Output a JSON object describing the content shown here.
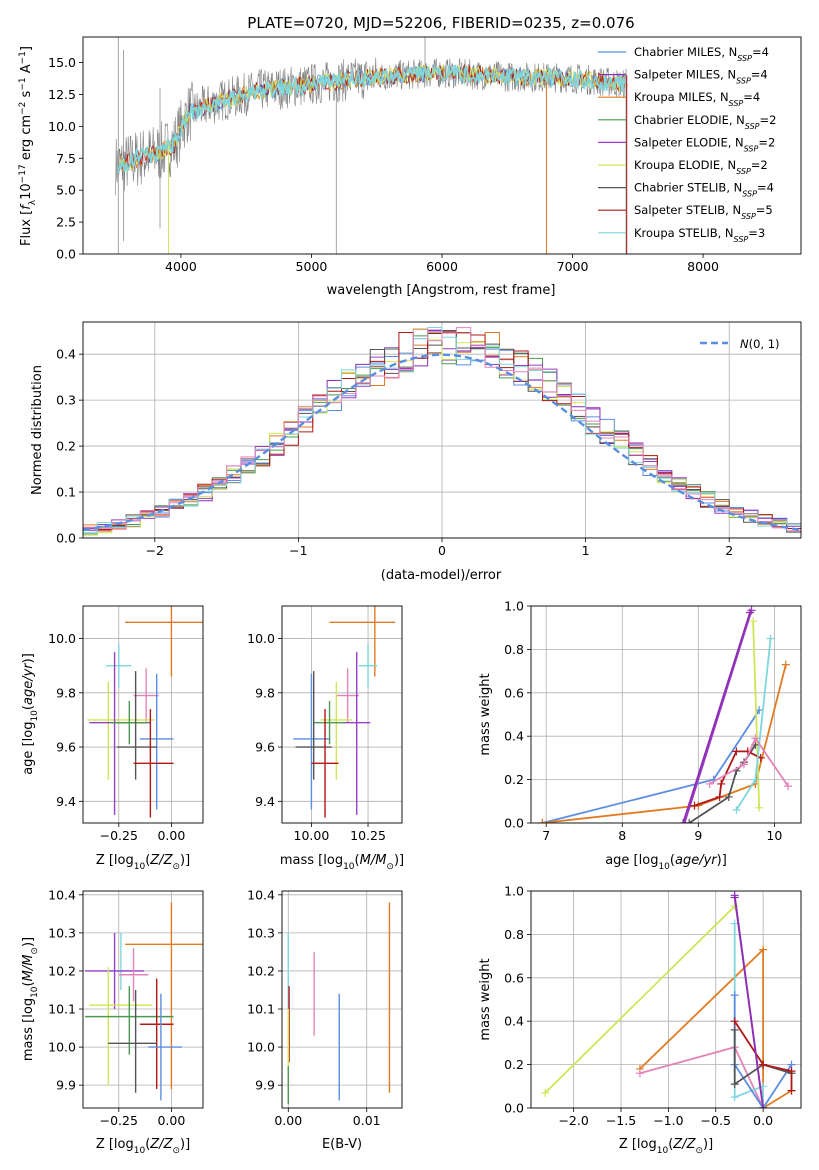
{
  "colors": {
    "Chabrier MILES": "#5b8ee0",
    "Salpeter MILES": "#8e2fb3",
    "Kroupa MILES": "#e07b22",
    "Chabrier ELODIE": "#4a9a52",
    "Salpeter ELODIE": "#9b3fc7",
    "Kroupa ELODIE": "#cfe65a",
    "Chabrier STELIB": "#555555",
    "Salpeter STELIB": "#b01818",
    "Kroupa STELIB": "#7fd6dc",
    "pink": "#e584b8",
    "gray_spec": "#7f7f7f",
    "normal_line": "#5b8ee0"
  },
  "chart_data": [
    {
      "id": "spectrum",
      "type": "line",
      "title": "PLATE=0720, MJD=52206, FIBERID=0235, z=0.076",
      "xlabel": "wavelength [Angstrom, rest frame]",
      "ylabel": "Flux [f_λ10^-17 erg cm^-2 s^-1 A^-1]",
      "xlim": [
        3250,
        8750
      ],
      "ylim": [
        0,
        17
      ],
      "xticks": [
        4000,
        5000,
        6000,
        7000,
        8000
      ],
      "yticks": [
        0.0,
        2.5,
        5.0,
        7.5,
        10.0,
        12.5,
        15.0
      ],
      "legend_position": "top-right",
      "legend": [
        {
          "name": "Chabrier MILES",
          "nssp": "4"
        },
        {
          "name": "Salpeter MILES",
          "nssp": "4"
        },
        {
          "name": "Kroupa MILES",
          "nssp": "4"
        },
        {
          "name": "Chabrier ELODIE",
          "nssp": "2"
        },
        {
          "name": "Salpeter ELODIE",
          "nssp": "2"
        },
        {
          "name": "Kroupa ELODIE",
          "nssp": "2"
        },
        {
          "name": "Chabrier STELIB",
          "nssp": "4"
        },
        {
          "name": "Salpeter STELIB",
          "nssp": "5"
        },
        {
          "name": "Kroupa STELIB",
          "nssp": "3"
        }
      ],
      "continuum": {
        "x": [
          3550,
          3700,
          3850,
          3950,
          4050,
          4300,
          4600,
          5000,
          5500,
          6000,
          6500,
          7000,
          7400
        ],
        "y": [
          7.0,
          7.6,
          8.0,
          8.6,
          11.0,
          12.0,
          12.8,
          13.3,
          13.9,
          14.2,
          13.9,
          13.8,
          13.3
        ]
      }
    },
    {
      "id": "residuals",
      "type": "histogram",
      "xlabel": "(data-model)/error",
      "ylabel": "Normed distribution",
      "xlim": [
        -2.5,
        2.5
      ],
      "ylim": [
        0,
        0.47
      ],
      "xticks": [
        -2,
        -1,
        0,
        1,
        2
      ],
      "yticks": [
        0.0,
        0.1,
        0.2,
        0.3,
        0.4
      ],
      "legend_position": "top-right",
      "legend_label": "N(0,1)",
      "bin_width": 0.1,
      "grid": true
    },
    {
      "id": "age_vs_Z",
      "type": "errorbar",
      "xlabel": "Z [log10(Z/Z⊙)]",
      "ylabel": "age  [log10(age/yr)]",
      "xlim": [
        -0.42,
        0.15
      ],
      "ylim": [
        9.32,
        10.12
      ],
      "xticks": [
        -0.25,
        0.0
      ],
      "xticklabels": [
        "−0.25",
        "0.00"
      ],
      "yticks": [
        9.4,
        9.6,
        9.8,
        10.0
      ],
      "points": [
        {
          "series": "Kroupa MILES",
          "x": 0.0,
          "y": 10.06,
          "xerr": [
            0.22,
            0.22
          ],
          "yerr": [
            0.2,
            0.2
          ]
        },
        {
          "series": "Kroupa STELIB",
          "x": -0.25,
          "y": 9.9,
          "xerr": [
            0.06,
            0.06
          ],
          "yerr": [
            0.08,
            0.08
          ]
        },
        {
          "series": "pink",
          "x": -0.12,
          "y": 9.79,
          "xerr": [
            0.06,
            0.06
          ],
          "yerr": [
            0.1,
            0.1
          ]
        },
        {
          "series": "Kroupa ELODIE",
          "x": -0.3,
          "y": 9.7,
          "xerr": [
            0.1,
            0.22
          ],
          "yerr": [
            0.22,
            0.14
          ]
        },
        {
          "series": "Salpeter ELODIE",
          "x": -0.27,
          "y": 9.69,
          "xerr": [
            0.12,
            0.17
          ],
          "yerr": [
            0.34,
            0.26
          ]
        },
        {
          "series": "Chabrier ELODIE",
          "x": -0.2,
          "y": 9.69,
          "xerr": [
            0.09,
            0.09
          ],
          "yerr": [
            0.08,
            0.08
          ]
        },
        {
          "series": "Chabrier MILES",
          "x": -0.07,
          "y": 9.63,
          "xerr": [
            0.08,
            0.08
          ],
          "yerr": [
            0.26,
            0.24
          ]
        },
        {
          "series": "Chabrier STELIB",
          "x": -0.17,
          "y": 9.6,
          "xerr": [
            0.09,
            0.1
          ],
          "yerr": [
            0.12,
            0.28
          ]
        },
        {
          "series": "Salpeter STELIB",
          "x": -0.1,
          "y": 9.54,
          "xerr": [
            0.08,
            0.11
          ],
          "yerr": [
            0.2,
            0.2
          ]
        }
      ]
    },
    {
      "id": "age_vs_mass",
      "type": "errorbar",
      "xlabel": "mass [log10(M/M⊙)]",
      "xlim": [
        9.87,
        10.4
      ],
      "ylim": [
        9.32,
        10.12
      ],
      "xticks": [
        10.0,
        10.25
      ],
      "xticklabels": [
        "10.00",
        "10.25"
      ],
      "yticks": [
        9.4,
        9.6,
        9.8,
        10.0
      ],
      "points": [
        {
          "series": "Kroupa MILES",
          "x": 10.28,
          "y": 10.06,
          "xerr": [
            0.2,
            0.09
          ],
          "yerr": [
            0.2,
            0.2
          ]
        },
        {
          "series": "Kroupa STELIB",
          "x": 10.25,
          "y": 9.9,
          "xerr": [
            0.04,
            0.04
          ],
          "yerr": [
            0.08,
            0.08
          ]
        },
        {
          "series": "pink",
          "x": 10.16,
          "y": 9.79,
          "xerr": [
            0.05,
            0.05
          ],
          "yerr": [
            0.1,
            0.1
          ]
        },
        {
          "series": "Kroupa ELODIE",
          "x": 10.11,
          "y": 9.7,
          "xerr": [
            0.07,
            0.07
          ],
          "yerr": [
            0.22,
            0.14
          ]
        },
        {
          "series": "Salpeter ELODIE",
          "x": 10.2,
          "y": 9.69,
          "xerr": [
            0.06,
            0.06
          ],
          "yerr": [
            0.34,
            0.26
          ]
        },
        {
          "series": "Chabrier ELODIE",
          "x": 10.08,
          "y": 9.69,
          "xerr": [
            0.07,
            0.07
          ],
          "yerr": [
            0.08,
            0.08
          ]
        },
        {
          "series": "Chabrier MILES",
          "x": 10.0,
          "y": 9.63,
          "xerr": [
            0.08,
            0.08
          ],
          "yerr": [
            0.26,
            0.24
          ]
        },
        {
          "series": "Chabrier STELIB",
          "x": 10.01,
          "y": 9.6,
          "xerr": [
            0.08,
            0.08
          ],
          "yerr": [
            0.12,
            0.28
          ]
        },
        {
          "series": "Salpeter STELIB",
          "x": 10.06,
          "y": 9.54,
          "xerr": [
            0.06,
            0.06
          ],
          "yerr": [
            0.2,
            0.2
          ]
        }
      ]
    },
    {
      "id": "massweight_vs_age",
      "type": "line",
      "xlabel": "age  [log10(age/yr)]",
      "ylabel": "mass weight",
      "xlim": [
        6.8,
        10.35
      ],
      "ylim": [
        0,
        1
      ],
      "xticks": [
        7,
        8,
        9,
        10
      ],
      "yticks": [
        0.0,
        0.2,
        0.4,
        0.6,
        0.8,
        1.0
      ],
      "series": [
        {
          "name": "Chabrier MILES",
          "x": [
            6.95,
            9.2,
            9.8
          ],
          "y": [
            0.0,
            0.2,
            0.52
          ]
        },
        {
          "name": "Kroupa MILES",
          "x": [
            6.95,
            9.0,
            9.75,
            10.15
          ],
          "y": [
            0.0,
            0.08,
            0.18,
            0.73
          ]
        },
        {
          "name": "Salpeter ELODIE",
          "x": [
            8.82,
            9.7
          ],
          "y": [
            0.0,
            0.98
          ]
        },
        {
          "name": "Kroupa ELODIE",
          "x": [
            9.72,
            9.8
          ],
          "y": [
            0.93,
            0.07
          ]
        },
        {
          "name": "Chabrier STELIB",
          "x": [
            8.88,
            9.4,
            9.5,
            9.6,
            9.75
          ],
          "y": [
            0.0,
            0.12,
            0.24,
            0.28,
            0.36
          ]
        },
        {
          "name": "Salpeter STELIB",
          "x": [
            8.95,
            9.28,
            9.3,
            9.5,
            9.65,
            9.82
          ],
          "y": [
            0.08,
            0.12,
            0.18,
            0.33,
            0.33,
            0.3
          ]
        },
        {
          "name": "Kroupa STELIB",
          "x": [
            9.5,
            9.75,
            9.95
          ],
          "y": [
            0.06,
            0.2,
            0.85
          ]
        },
        {
          "name": "pink",
          "x": [
            9.15,
            9.6,
            9.75,
            10.18
          ],
          "y": [
            0.18,
            0.27,
            0.39,
            0.17
          ]
        },
        {
          "name": "Salpeter MILES",
          "x": [
            8.8,
            9.68
          ],
          "y": [
            0.0,
            0.97
          ]
        }
      ]
    },
    {
      "id": "mass_vs_Z",
      "type": "errorbar",
      "xlabel": "Z [log10(Z/Z⊙)]",
      "ylabel": "mass [log10(M/M⊙)]",
      "xlim": [
        -0.42,
        0.15
      ],
      "ylim": [
        9.84,
        10.41
      ],
      "xticks": [
        -0.25,
        0.0
      ],
      "xticklabels": [
        "−0.25",
        "0.00"
      ],
      "yticks": [
        9.9,
        10.0,
        10.1,
        10.2,
        10.3,
        10.4
      ],
      "points": [
        {
          "series": "Kroupa MILES",
          "x": 0.0,
          "y": 10.27,
          "xerr": [
            0.22,
            0.22
          ],
          "yerr": [
            0.38,
            0.11
          ]
        },
        {
          "series": "Kroupa STELIB",
          "x": -0.24,
          "y": 10.2,
          "xerr": [
            0.08,
            0.08
          ],
          "yerr": [
            0.05,
            0.1
          ]
        },
        {
          "series": "Salpeter ELODIE",
          "x": -0.27,
          "y": 10.2,
          "xerr": [
            0.14,
            0.14
          ],
          "yerr": [
            0.1,
            0.1
          ]
        },
        {
          "series": "pink",
          "x": -0.18,
          "y": 10.19,
          "xerr": [
            0.07,
            0.07
          ],
          "yerr": [
            0.07,
            0.07
          ]
        },
        {
          "series": "Kroupa ELODIE",
          "x": -0.3,
          "y": 10.11,
          "xerr": [
            0.09,
            0.21
          ],
          "yerr": [
            0.21,
            0.1
          ]
        },
        {
          "series": "Chabrier ELODIE",
          "x": -0.2,
          "y": 10.08,
          "xerr": [
            0.21,
            0.21
          ],
          "yerr": [
            0.1,
            0.08
          ]
        },
        {
          "series": "Salpeter STELIB",
          "x": -0.07,
          "y": 10.06,
          "xerr": [
            0.08,
            0.08
          ],
          "yerr": [
            0.17,
            0.12
          ]
        },
        {
          "series": "Chabrier STELIB",
          "x": -0.17,
          "y": 10.01,
          "xerr": [
            0.13,
            0.1
          ],
          "yerr": [
            0.13,
            0.14
          ]
        },
        {
          "series": "Chabrier MILES",
          "x": -0.05,
          "y": 10.0,
          "xerr": [
            0.06,
            0.1
          ],
          "yerr": [
            0.14,
            0.14
          ]
        }
      ]
    },
    {
      "id": "mass_vs_ebv",
      "type": "errorbar",
      "xlabel": "E(B-V)",
      "xlim": [
        -0.0008,
        0.0145
      ],
      "ylim": [
        9.84,
        10.41
      ],
      "xticks": [
        0.0,
        0.01
      ],
      "xticklabels": [
        "0.00",
        "0.01"
      ],
      "yticks": [
        9.9,
        10.0,
        10.1,
        10.2,
        10.3,
        10.4
      ],
      "points": [
        {
          "series": "Kroupa MILES",
          "x": 0.0129,
          "y": 10.13,
          "xerr": [
            0,
            0
          ],
          "yerr": [
            0.25,
            0.25
          ]
        },
        {
          "series": "Kroupa STELIB",
          "x": 0.0,
          "y": 10.2,
          "xerr": [
            0,
            0
          ],
          "yerr": [
            0.1,
            0.1
          ]
        },
        {
          "series": "pink",
          "x": 0.0033,
          "y": 10.14,
          "xerr": [
            0,
            0
          ],
          "yerr": [
            0.11,
            0.11
          ]
        },
        {
          "series": "Chabrier MILES",
          "x": 0.0065,
          "y": 10.0,
          "xerr": [
            0,
            0
          ],
          "yerr": [
            0.14,
            0.14
          ]
        },
        {
          "series": "Salpeter STELIB",
          "x": 0.0001,
          "y": 10.06,
          "xerr": [
            0,
            0
          ],
          "yerr": [
            0.1,
            0.1
          ]
        },
        {
          "series": "Kroupa ELODIE",
          "x": 0.0,
          "y": 10.0,
          "xerr": [
            0,
            0
          ],
          "yerr": [
            0.1,
            0.1
          ]
        },
        {
          "series": "Chabrier ELODIE",
          "x": 0.0,
          "y": 9.9,
          "xerr": [
            0,
            0
          ],
          "yerr": [
            0.05,
            0.05
          ]
        }
      ]
    },
    {
      "id": "massweight_vs_Z",
      "type": "line",
      "xlabel": "Z [log10(Z/Z⊙)]",
      "ylabel": "mass weight",
      "xlim": [
        -2.45,
        0.4
      ],
      "ylim": [
        0,
        1
      ],
      "xticks": [
        -2.0,
        -1.5,
        -1.0,
        -0.5,
        0.0
      ],
      "xticklabels": [
        "−2.0",
        "−1.5",
        "−1.0",
        "−0.5",
        "0.0"
      ],
      "yticks": [
        0.0,
        0.2,
        0.4,
        0.6,
        0.8,
        1.0
      ],
      "series": [
        {
          "name": "Kroupa ELODIE",
          "x": [
            -2.3,
            -0.3
          ],
          "y": [
            0.07,
            0.93
          ]
        },
        {
          "name": "Kroupa MILES",
          "x": [
            -1.3,
            0.0,
            0.0,
            0.3
          ],
          "y": [
            0.18,
            0.73,
            0.0,
            0.08
          ]
        },
        {
          "name": "pink",
          "x": [
            -1.3,
            -0.3,
            0.0
          ],
          "y": [
            0.16,
            0.28,
            0.0
          ]
        },
        {
          "name": "Salpeter ELODIE",
          "x": [
            -0.3,
            0.0
          ],
          "y": [
            0.98,
            0.0
          ]
        },
        {
          "name": "Kroupa STELIB",
          "x": [
            -0.3,
            -0.3,
            0.0,
            0.0
          ],
          "y": [
            0.85,
            0.05,
            0.1,
            0.0
          ]
        },
        {
          "name": "Chabrier MILES",
          "x": [
            -0.3,
            -0.3,
            0.0,
            0.3
          ],
          "y": [
            0.52,
            0.2,
            0.0,
            0.2
          ]
        },
        {
          "name": "Chabrier STELIB",
          "x": [
            -0.3,
            -0.3,
            0.0,
            0.3
          ],
          "y": [
            0.36,
            0.11,
            0.2,
            0.16
          ]
        },
        {
          "name": "Salpeter STELIB",
          "x": [
            -0.3,
            0.0,
            0.3,
            0.3
          ],
          "y": [
            0.4,
            0.2,
            0.17,
            0.08
          ]
        },
        {
          "name": "Salpeter MILES",
          "x": [
            -0.3,
            0.0
          ],
          "y": [
            0.97,
            0.0
          ]
        }
      ]
    }
  ]
}
